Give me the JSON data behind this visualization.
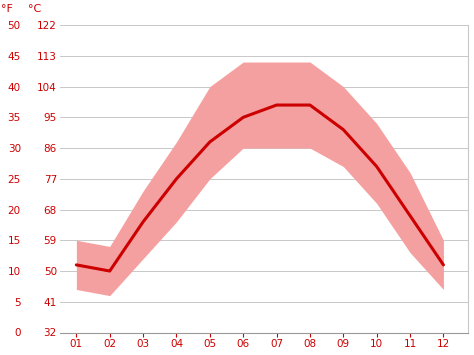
{
  "months": [
    1,
    2,
    3,
    4,
    5,
    6,
    7,
    8,
    9,
    10,
    11,
    12
  ],
  "month_labels": [
    "01",
    "02",
    "03",
    "04",
    "05",
    "06",
    "07",
    "08",
    "09",
    "10",
    "11",
    "12"
  ],
  "avg_temp": [
    11,
    10,
    18,
    25,
    31,
    35,
    37,
    37,
    33,
    27,
    19,
    11
  ],
  "max_temp": [
    15,
    14,
    23,
    31,
    40,
    44,
    44,
    44,
    40,
    34,
    26,
    15
  ],
  "min_temp": [
    7,
    6,
    12,
    18,
    25,
    30,
    30,
    30,
    27,
    21,
    13,
    7
  ],
  "y_ticks": [
    0,
    5,
    10,
    15,
    20,
    25,
    30,
    35,
    40,
    45,
    50
  ],
  "y_left_labels": [
    "32",
    "41",
    "50",
    "59",
    "68",
    "77",
    "86",
    "95",
    "104",
    "113",
    "122"
  ],
  "y_right_labels": [
    "0",
    "5",
    "10",
    "15",
    "20",
    "25",
    "30",
    "35",
    "40",
    "45",
    "50"
  ],
  "line_color": "#cc0000",
  "fill_color": "#f5a0a0",
  "bg_color": "#ffffff",
  "grid_color": "#c8c8c8",
  "tick_color": "#cc0000",
  "left_header": "°F",
  "right_header": "°C",
  "ylim": [
    0,
    50
  ],
  "xlim_left": 0.5,
  "xlim_right": 12.75
}
